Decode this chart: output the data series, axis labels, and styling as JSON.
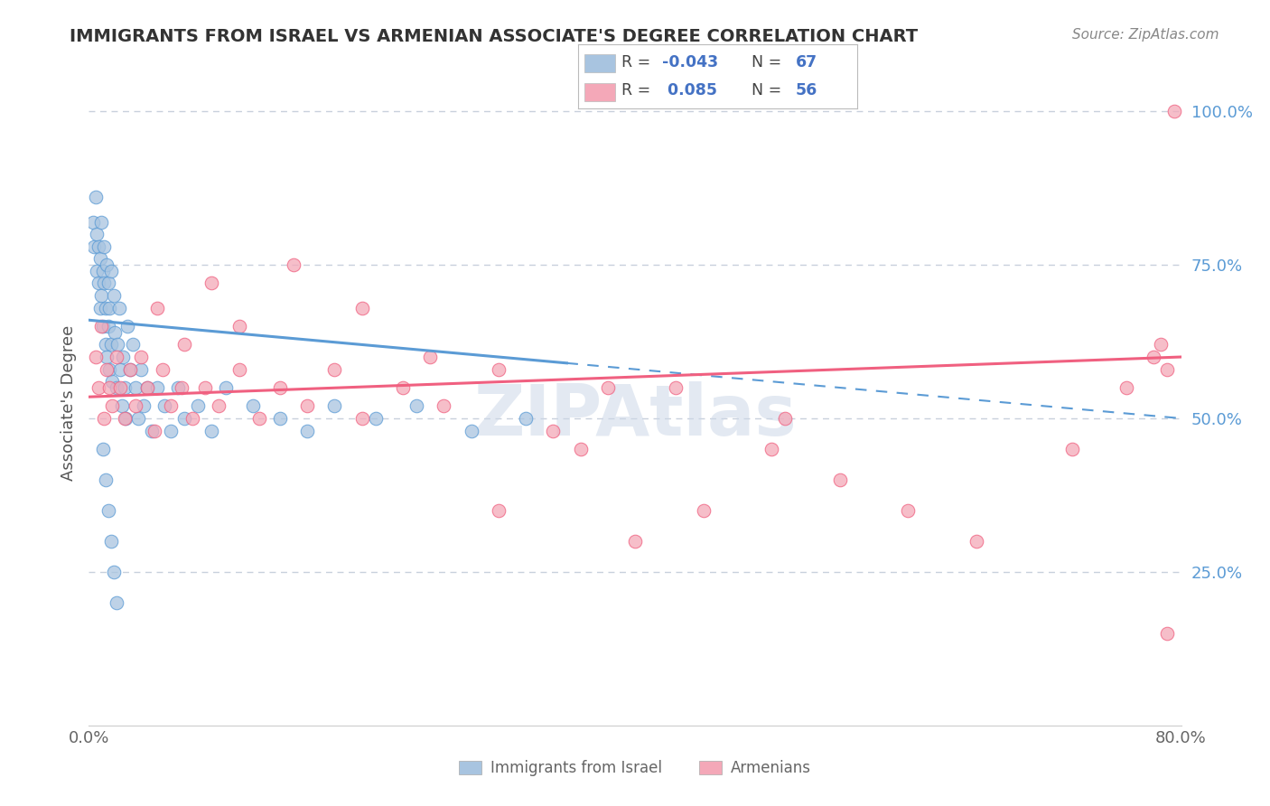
{
  "title": "IMMIGRANTS FROM ISRAEL VS ARMENIAN ASSOCIATE'S DEGREE CORRELATION CHART",
  "source_text": "Source: ZipAtlas.com",
  "ylabel": "Associate's Degree",
  "xmin": 0.0,
  "xmax": 0.8,
  "ymin": 0.0,
  "ymax": 1.05,
  "color_israel": "#a8c4e0",
  "color_armenian": "#f4a8b8",
  "line_israel": "#5b9bd5",
  "line_armenian": "#f06080",
  "grid_color": "#c8d0dc",
  "israel_x": [
    0.003,
    0.004,
    0.005,
    0.006,
    0.006,
    0.007,
    0.007,
    0.008,
    0.008,
    0.009,
    0.009,
    0.01,
    0.01,
    0.011,
    0.011,
    0.012,
    0.012,
    0.013,
    0.013,
    0.014,
    0.014,
    0.015,
    0.015,
    0.016,
    0.016,
    0.017,
    0.018,
    0.019,
    0.02,
    0.021,
    0.022,
    0.023,
    0.024,
    0.025,
    0.026,
    0.027,
    0.028,
    0.03,
    0.032,
    0.034,
    0.036,
    0.038,
    0.04,
    0.043,
    0.046,
    0.05,
    0.055,
    0.06,
    0.065,
    0.07,
    0.08,
    0.09,
    0.1,
    0.12,
    0.14,
    0.16,
    0.18,
    0.21,
    0.24,
    0.28,
    0.32,
    0.01,
    0.012,
    0.014,
    0.016,
    0.018,
    0.02
  ],
  "israel_y": [
    0.82,
    0.78,
    0.86,
    0.8,
    0.74,
    0.78,
    0.72,
    0.68,
    0.76,
    0.82,
    0.7,
    0.74,
    0.65,
    0.72,
    0.78,
    0.68,
    0.62,
    0.75,
    0.6,
    0.72,
    0.65,
    0.58,
    0.68,
    0.74,
    0.62,
    0.56,
    0.7,
    0.64,
    0.55,
    0.62,
    0.68,
    0.58,
    0.52,
    0.6,
    0.55,
    0.5,
    0.65,
    0.58,
    0.62,
    0.55,
    0.5,
    0.58,
    0.52,
    0.55,
    0.48,
    0.55,
    0.52,
    0.48,
    0.55,
    0.5,
    0.52,
    0.48,
    0.55,
    0.52,
    0.5,
    0.48,
    0.52,
    0.5,
    0.52,
    0.48,
    0.5,
    0.45,
    0.4,
    0.35,
    0.3,
    0.25,
    0.2
  ],
  "armenian_x": [
    0.005,
    0.007,
    0.009,
    0.011,
    0.013,
    0.015,
    0.017,
    0.02,
    0.023,
    0.026,
    0.03,
    0.034,
    0.038,
    0.043,
    0.048,
    0.054,
    0.06,
    0.068,
    0.076,
    0.085,
    0.095,
    0.11,
    0.125,
    0.14,
    0.16,
    0.18,
    0.2,
    0.23,
    0.26,
    0.3,
    0.34,
    0.38,
    0.05,
    0.07,
    0.09,
    0.11,
    0.15,
    0.2,
    0.25,
    0.3,
    0.36,
    0.43,
    0.51,
    0.4,
    0.45,
    0.5,
    0.55,
    0.6,
    0.65,
    0.72,
    0.76,
    0.78,
    0.79,
    0.795,
    0.79,
    0.785
  ],
  "armenian_y": [
    0.6,
    0.55,
    0.65,
    0.5,
    0.58,
    0.55,
    0.52,
    0.6,
    0.55,
    0.5,
    0.58,
    0.52,
    0.6,
    0.55,
    0.48,
    0.58,
    0.52,
    0.55,
    0.5,
    0.55,
    0.52,
    0.58,
    0.5,
    0.55,
    0.52,
    0.58,
    0.5,
    0.55,
    0.52,
    0.58,
    0.48,
    0.55,
    0.68,
    0.62,
    0.72,
    0.65,
    0.75,
    0.68,
    0.6,
    0.35,
    0.45,
    0.55,
    0.5,
    0.3,
    0.35,
    0.45,
    0.4,
    0.35,
    0.3,
    0.45,
    0.55,
    0.6,
    0.15,
    1.0,
    0.58,
    0.62
  ]
}
